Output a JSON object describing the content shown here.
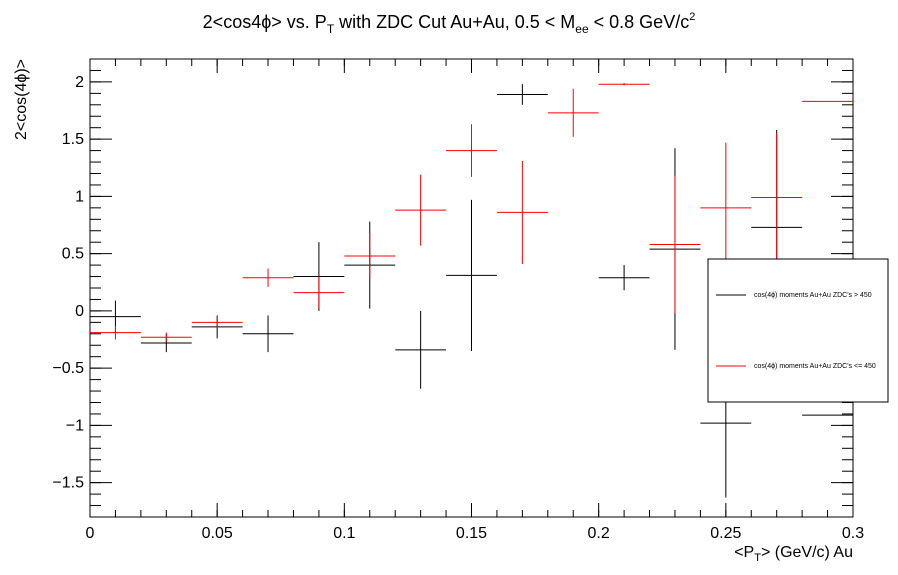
{
  "chart_data": {
    "type": "scatter",
    "title": "2<cos4ϕ> vs. P",
    "title_sub": "T",
    "title_rest": " with ZDC Cut Au+Au, 0.5 < M",
    "title_sub2": "ee",
    "title_rest2": " < 0.8 GeV/c",
    "title_sup": "2",
    "xlabel_pre": "<P",
    "xlabel_sub": "T",
    "xlabel_post": "> (GeV/c) Au",
    "ylabel": "2<cos(4ϕ)>",
    "xlim": [
      0,
      0.3
    ],
    "ylim": [
      -1.8,
      2.2
    ],
    "xticks": [
      0,
      0.05,
      0.1,
      0.15,
      0.2,
      0.25,
      0.3
    ],
    "xtick_labels": [
      "0",
      "0.05",
      "0.1",
      "0.15",
      "0.2",
      "0.25",
      "0.3"
    ],
    "yticks": [
      -1.5,
      -1,
      -0.5,
      0,
      0.5,
      1,
      1.5,
      2
    ],
    "ytick_labels": [
      "−1.5",
      "−1",
      "−0.5",
      "0",
      "0.5",
      "1",
      "1.5",
      "2"
    ],
    "grid": false,
    "legend_position": "right",
    "series": [
      {
        "name": "cos(4ϕ) moments  Au+Au ZDC's > 450",
        "color": "#000000",
        "x": [
          0.01,
          0.03,
          0.05,
          0.07,
          0.09,
          0.11,
          0.13,
          0.15,
          0.17,
          0.21,
          0.23,
          0.25,
          0.27,
          0.29
        ],
        "y": [
          -0.05,
          -0.28,
          -0.14,
          -0.2,
          0.3,
          0.4,
          -0.34,
          0.31,
          1.89,
          0.29,
          0.54,
          -0.98,
          0.73,
          -0.91
        ],
        "yerr": [
          0.14,
          0.08,
          0.1,
          0.16,
          0.3,
          0.38,
          0.34,
          0.66,
          0.09,
          0.11,
          0.88,
          0.65,
          0.85,
          0.0
        ]
      },
      {
        "name": "cos(4ϕ) moments  Au+Au ZDC's <= 450",
        "color": "#ff0000",
        "x": [
          0.01,
          0.03,
          0.05,
          0.07,
          0.09,
          0.11,
          0.13,
          0.15,
          0.17,
          0.19,
          0.21,
          0.23,
          0.25,
          0.27,
          0.29
        ],
        "y": [
          -0.19,
          -0.23,
          -0.1,
          0.29,
          0.16,
          0.48,
          0.88,
          1.4,
          0.86,
          1.73,
          1.98,
          0.58,
          0.9,
          0.99,
          1.83
        ],
        "yerr": [
          0.06,
          0.04,
          0.05,
          0.08,
          0.14,
          0.2,
          0.31,
          0.23,
          0.45,
          0.21,
          0.01,
          0.6,
          0.57,
          0.56,
          0.0
        ]
      }
    ],
    "xerr": 0.01
  }
}
